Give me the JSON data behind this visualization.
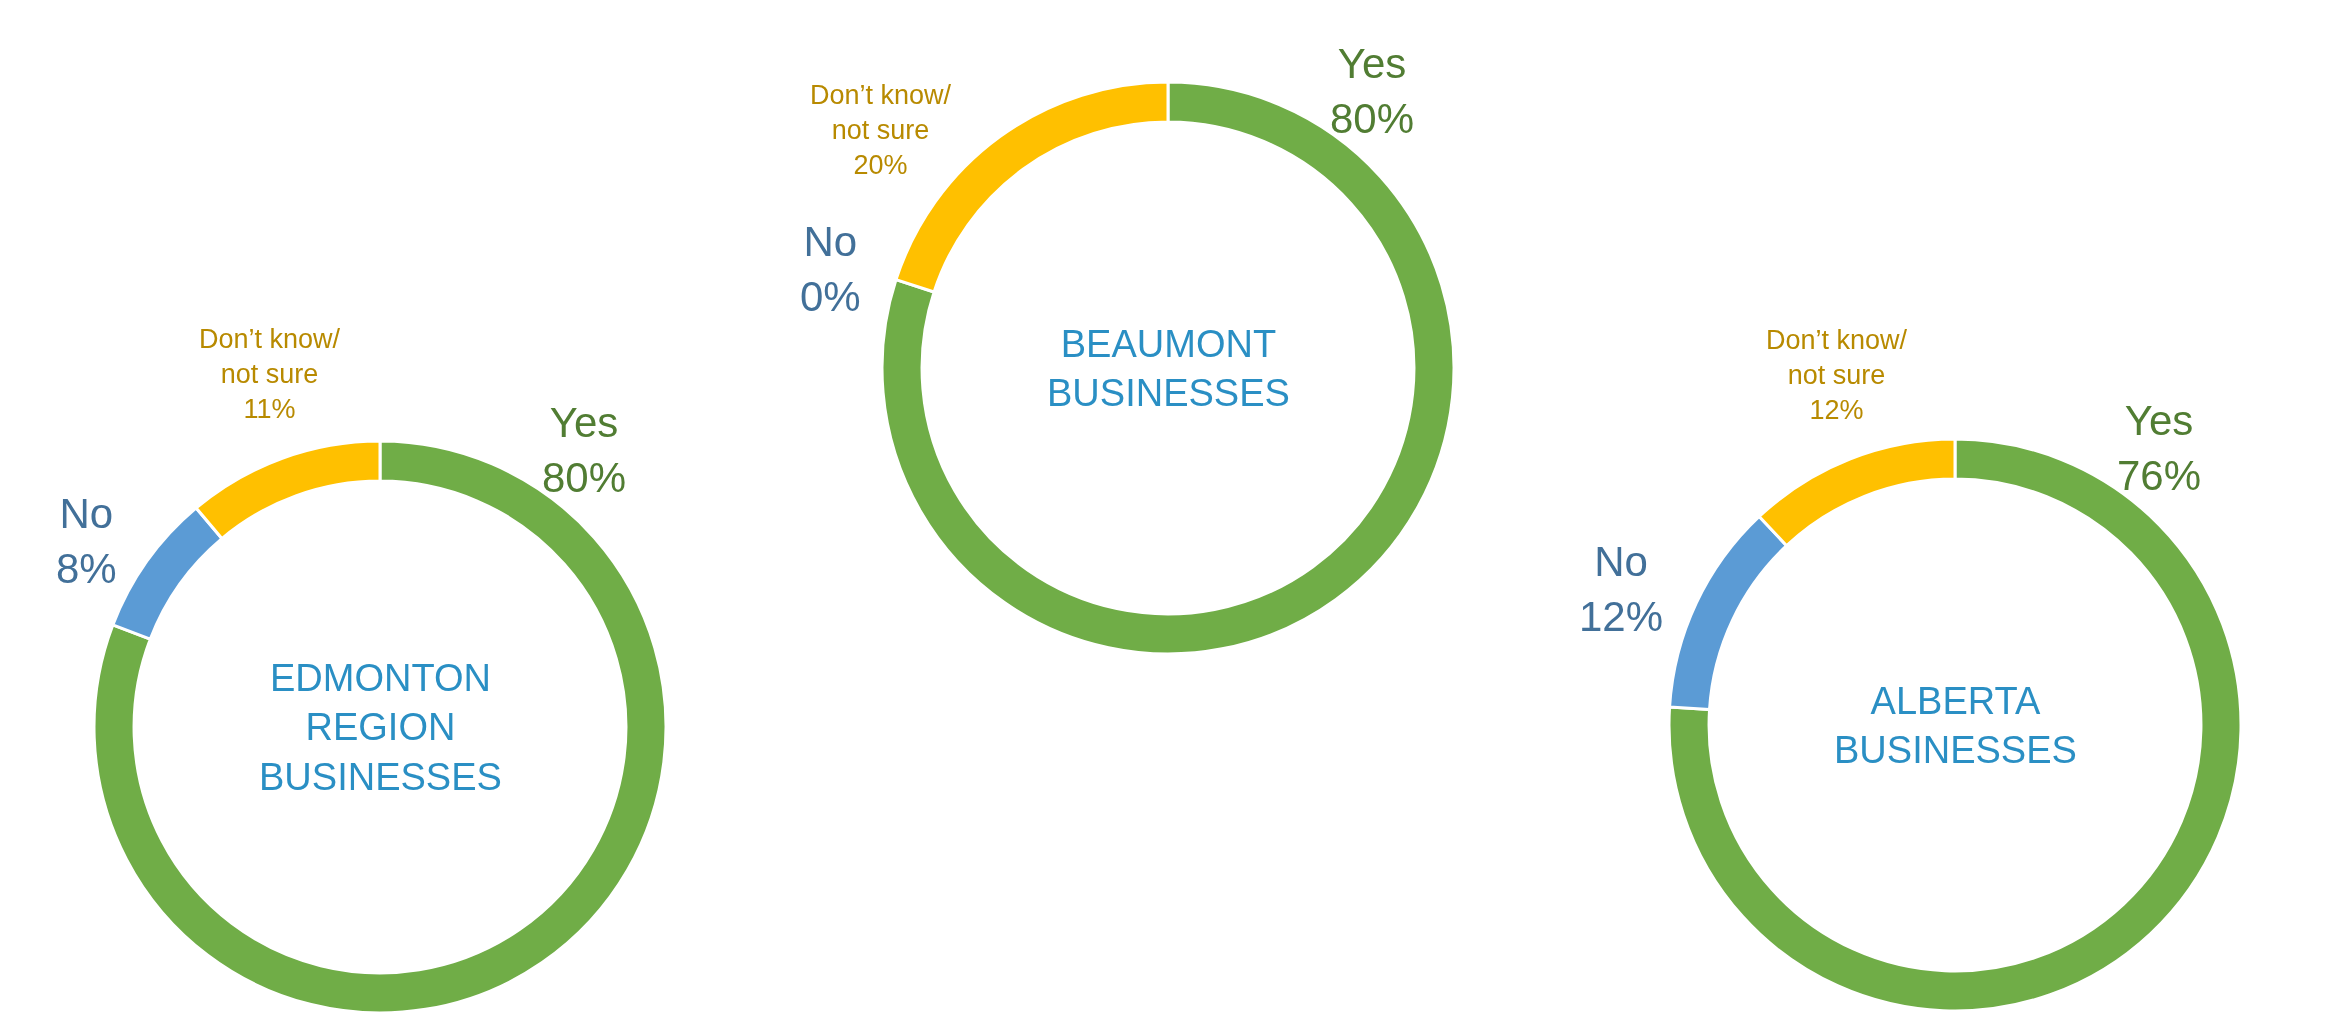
{
  "chart_data": [
    {
      "type": "donut",
      "title": "EDMONTON\nREGION\nBUSINESSES",
      "categories": [
        "Yes",
        "No",
        "Don’t know/\nnot sure"
      ],
      "values": [
        80,
        8,
        11
      ],
      "value_labels": [
        "80%",
        "8%",
        "11%"
      ],
      "colors": [
        "#70ad47",
        "#5b9bd5",
        "#ffc000"
      ],
      "legend": false
    },
    {
      "type": "donut",
      "title": "BEAUMONT\nBUSINESSES",
      "categories": [
        "Yes",
        "No",
        "Don’t know/\nnot sure"
      ],
      "values": [
        80,
        0,
        20
      ],
      "value_labels": [
        "80%",
        "0%",
        "20%"
      ],
      "colors": [
        "#70ad47",
        "#5b9bd5",
        "#ffc000"
      ],
      "legend": false
    },
    {
      "type": "donut",
      "title": "ALBERTA\nBUSINESSES",
      "categories": [
        "Yes",
        "No",
        "Don’t know/\nnot sure"
      ],
      "values": [
        76,
        12,
        12
      ],
      "value_labels": [
        "76%",
        "12%",
        "12%"
      ],
      "colors": [
        "#70ad47",
        "#5b9bd5",
        "#ffc000"
      ],
      "legend": false
    }
  ]
}
